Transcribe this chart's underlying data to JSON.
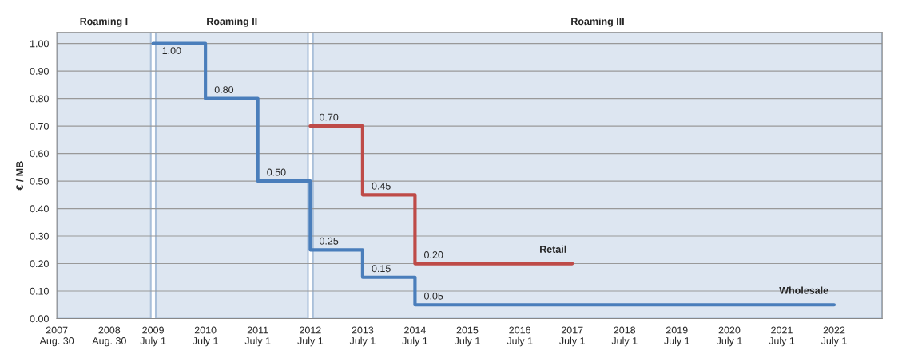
{
  "chart_data": {
    "type": "step",
    "ylabel": "€ / MB",
    "series": [
      {
        "name": "Wholesale",
        "color": "#4a7ebb",
        "x": [
          "2009-07-01",
          "2010-07-01",
          "2011-07-01",
          "2012-07-01",
          "2013-07-01",
          "2014-07-01",
          "2022-07-01"
        ],
        "values": [
          1.0,
          0.8,
          0.5,
          0.25,
          0.15,
          0.05,
          0.05
        ],
        "value_labels": [
          "1.00",
          "0.80",
          "0.50",
          "0.25",
          "0.15",
          "0.05",
          null
        ]
      },
      {
        "name": "Retail",
        "color": "#be4b48",
        "x": [
          "2012-07-01",
          "2013-07-01",
          "2014-07-01",
          "2017-07-01"
        ],
        "values": [
          0.7,
          0.45,
          0.2,
          0.2
        ],
        "value_labels": [
          "0.70",
          "0.45",
          "0.20",
          null
        ]
      }
    ],
    "xlim": [
      "2007-08-30",
      "2023-06-01"
    ],
    "xticks": [
      {
        "value": "2007-08-30",
        "label": "2007\nAug. 30"
      },
      {
        "value": "2008-08-30",
        "label": "2008\nAug. 30"
      },
      {
        "value": "2009-07-01",
        "label": "2009\nJuly 1"
      },
      {
        "value": "2010-07-01",
        "label": "2010\nJuly 1"
      },
      {
        "value": "2011-07-01",
        "label": "2011\nJuly 1"
      },
      {
        "value": "2012-07-01",
        "label": "2012\nJuly 1"
      },
      {
        "value": "2013-07-01",
        "label": "2013\nJuly 1"
      },
      {
        "value": "2014-07-01",
        "label": "2014\nJuly 1"
      },
      {
        "value": "2015-07-01",
        "label": "2015\nJuly 1"
      },
      {
        "value": "2016-07-01",
        "label": "2016\nJuly 1"
      },
      {
        "value": "2017-07-01",
        "label": "2017\nJuly 1"
      },
      {
        "value": "2018-07-01",
        "label": "2018\nJuly 1"
      },
      {
        "value": "2019-07-01",
        "label": "2019\nJuly 1"
      },
      {
        "value": "2020-07-01",
        "label": "2020\nJuly 1"
      },
      {
        "value": "2021-07-01",
        "label": "2021\nJuly 1"
      },
      {
        "value": "2022-07-01",
        "label": "2022\nJuly 1"
      }
    ],
    "ylim": [
      0,
      1.04
    ],
    "yticks": [
      {
        "value": 0,
        "label": "0.00"
      },
      {
        "value": 0.1,
        "label": "0.10"
      },
      {
        "value": 0.2,
        "label": "0.20"
      },
      {
        "value": 0.3,
        "label": "0.30"
      },
      {
        "value": 0.4,
        "label": "0.40"
      },
      {
        "value": 0.5,
        "label": "0.50"
      },
      {
        "value": 0.6,
        "label": "0.60"
      },
      {
        "value": 0.7,
        "label": "0.70"
      },
      {
        "value": 0.8,
        "label": "0.80"
      },
      {
        "value": 0.9,
        "label": "0.90"
      },
      {
        "value": 1.0,
        "label": "1.00"
      }
    ],
    "bands": [
      {
        "axis": "x",
        "from": "2007-08-30",
        "to": "2009-06-15",
        "label": "Roaming I",
        "color": "#dde6f1"
      },
      {
        "axis": "x",
        "from": "2009-07-20",
        "to": "2012-06-15",
        "label": "Roaming II",
        "color": "#dde6f1"
      },
      {
        "axis": "x",
        "from": "2012-07-20",
        "to": "2023-06-01",
        "label": "Roaming III",
        "color": "#dde6f1"
      }
    ],
    "grid": "y",
    "legend": false,
    "line_style": "solid",
    "marker": "none"
  }
}
